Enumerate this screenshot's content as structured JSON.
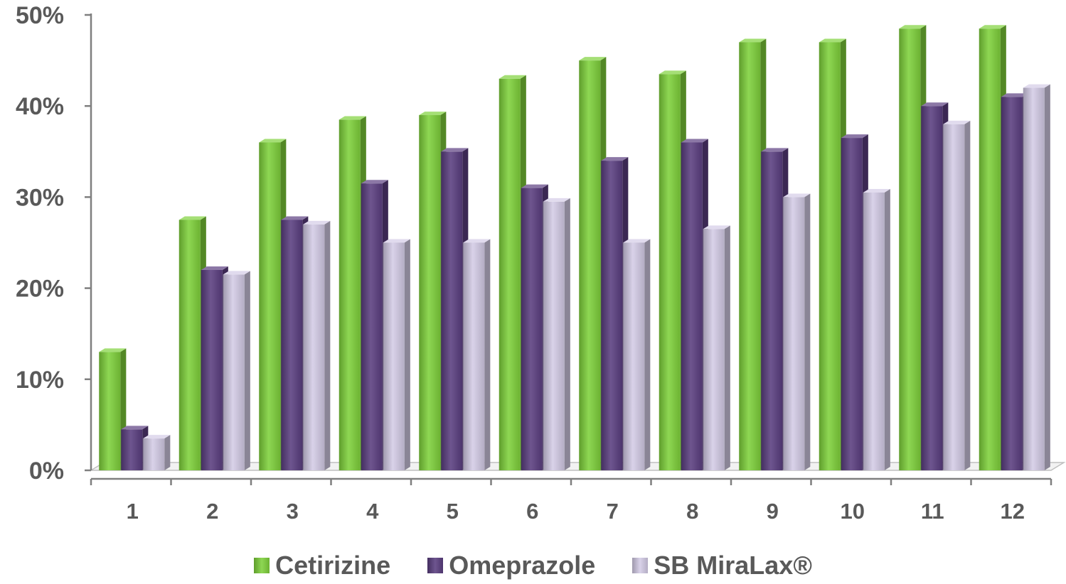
{
  "chart_data": {
    "type": "bar",
    "categories": [
      "1",
      "2",
      "3",
      "4",
      "5",
      "6",
      "7",
      "8",
      "9",
      "10",
      "11",
      "12"
    ],
    "series": [
      {
        "name": "Cetirizine",
        "color": "#7fd13b",
        "values": [
          13,
          27.5,
          36,
          38.5,
          39,
          43,
          45,
          43.5,
          47,
          47,
          48.5,
          48.5
        ]
      },
      {
        "name": "Omeprazole",
        "color": "#5a3e80",
        "values": [
          4.5,
          22,
          27.5,
          31.5,
          35,
          31,
          34,
          36,
          35,
          36.5,
          40,
          41
        ]
      },
      {
        "name": "SB MiraLax®",
        "color": "#d4cce6",
        "values": [
          3.5,
          21.5,
          27,
          25,
          25,
          29.5,
          25,
          26.5,
          30,
          30.5,
          38,
          42
        ]
      }
    ],
    "y_ticks": [
      "0%",
      "10%",
      "20%",
      "30%",
      "40%",
      "50%"
    ],
    "ylim": [
      0,
      50
    ],
    "title": "",
    "xlabel": "",
    "ylabel": "",
    "grid": false,
    "legend_position": "bottom",
    "style": "3d-clustered-column"
  }
}
